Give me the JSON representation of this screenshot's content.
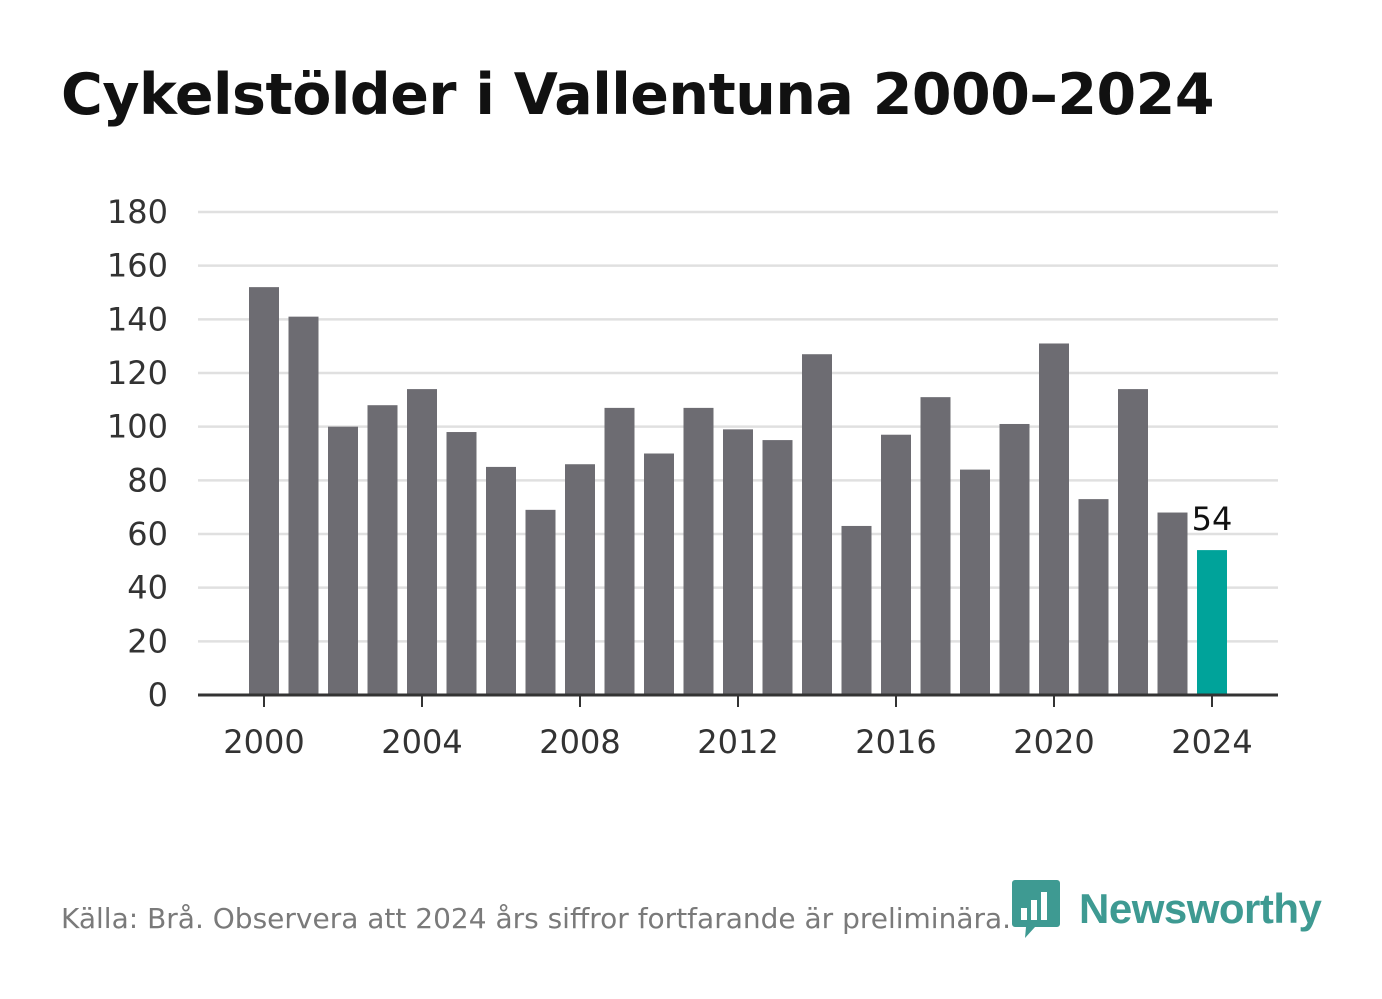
{
  "title": "Cykelstölder i Vallentuna 2000–2024",
  "source": "Källa: Brå. Observera att 2024 års siffror fortfarande är preliminära.",
  "brand": {
    "name": "Newsworthy",
    "icon": "newsworthy-logo-icon",
    "color": "#3e9a92"
  },
  "colors": {
    "bar": "#6d6c72",
    "highlight": "#00a39a",
    "grid": "#e0e0e0",
    "axis": "#333333"
  },
  "chart_data": {
    "type": "bar",
    "title": "Cykelstölder i Vallentuna 2000–2024",
    "xlabel": "",
    "ylabel": "",
    "ylim": [
      0,
      180
    ],
    "yticks": [
      0,
      20,
      40,
      60,
      80,
      100,
      120,
      140,
      160,
      180
    ],
    "xticks": [
      2000,
      2004,
      2008,
      2012,
      2016,
      2020,
      2024
    ],
    "grid": true,
    "categories": [
      2000,
      2001,
      2002,
      2003,
      2004,
      2005,
      2006,
      2007,
      2008,
      2009,
      2010,
      2011,
      2012,
      2013,
      2014,
      2015,
      2016,
      2017,
      2018,
      2019,
      2020,
      2021,
      2022,
      2023,
      2024
    ],
    "values": [
      152,
      141,
      100,
      108,
      114,
      98,
      85,
      69,
      86,
      107,
      90,
      107,
      99,
      95,
      127,
      63,
      97,
      111,
      84,
      101,
      131,
      73,
      114,
      68,
      54
    ],
    "highlight": {
      "category": 2024,
      "label": "54"
    }
  }
}
